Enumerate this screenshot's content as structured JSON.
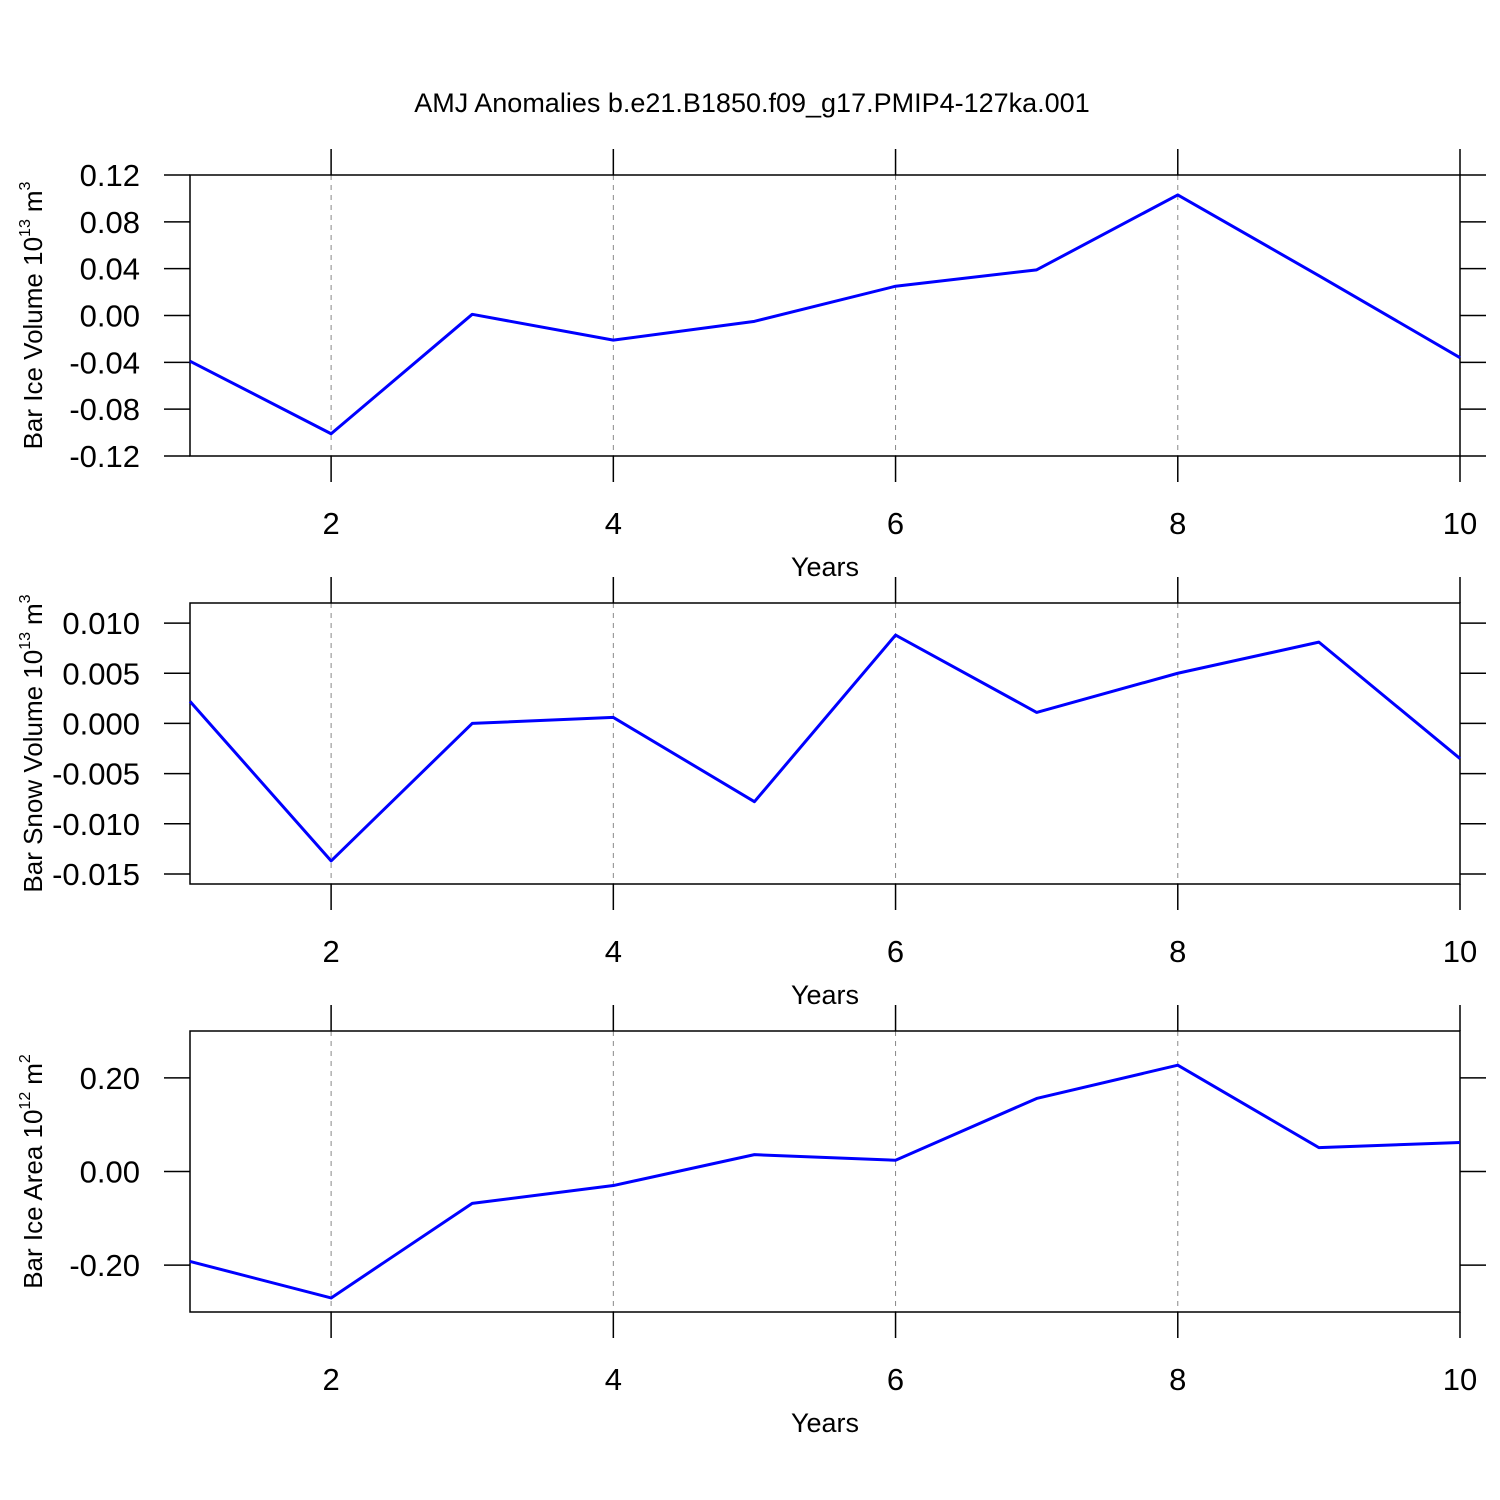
{
  "title": "AMJ Anomalies b.e21.B1850.f09_g17.PMIP4-127ka.001",
  "chart_data": [
    {
      "type": "line",
      "ylabel": [
        "Bar Ice Volume 10",
        "13",
        "m",
        "3"
      ],
      "xlabel": "Years",
      "x": [
        1,
        2,
        3,
        4,
        5,
        6,
        7,
        8,
        9,
        10
      ],
      "values": [
        -0.039,
        -0.101,
        0.001,
        -0.021,
        -0.005,
        0.025,
        0.039,
        0.103,
        0.034,
        -0.036
      ],
      "color": "#0000ff",
      "xlim": [
        1,
        10
      ],
      "xticks": [
        2,
        4,
        6,
        8,
        10
      ],
      "ylim": [
        -0.12,
        0.12
      ],
      "yticks": [
        {
          "value": -0.12,
          "label": "-0.12"
        },
        {
          "value": -0.08,
          "label": "-0.08"
        },
        {
          "value": -0.04,
          "label": "-0.04"
        },
        {
          "value": 0,
          "label": "0.00"
        },
        0.04,
        0.08,
        0.12
      ],
      "grid": "x"
    },
    {
      "type": "line",
      "ylabel": [
        "Bar Snow Volume 10",
        "13",
        "m",
        "3"
      ],
      "xlabel": "Years",
      "x": [
        1,
        2,
        3,
        4,
        5,
        6,
        7,
        8,
        9,
        10
      ],
      "values": [
        0.0022,
        -0.0137,
        0.0,
        0.0006,
        -0.0078,
        0.0088,
        0.0011,
        0.005,
        0.0081,
        -0.0035
      ],
      "color": "#0000ff",
      "xlim": [
        1,
        10
      ],
      "xticks": [
        2,
        4,
        6,
        8,
        10
      ],
      "ylim": [
        -0.016,
        0.012
      ],
      "yticks": [
        -0.015,
        {
          "value": -0.01,
          "label": "-0.010"
        },
        -0.005,
        {
          "value": 0,
          "label": "0.000"
        },
        0.005,
        {
          "value": 0.01,
          "label": "0.010"
        }
      ],
      "grid": "x"
    },
    {
      "type": "line",
      "ylabel": [
        "Bar Ice Area 10",
        "12",
        "m",
        "2"
      ],
      "xlabel": "Years",
      "x": [
        1,
        2,
        3,
        4,
        5,
        6,
        7,
        8,
        9,
        10
      ],
      "values": [
        -0.192,
        -0.27,
        -0.068,
        -0.03,
        0.036,
        0.024,
        0.156,
        0.227,
        0.051,
        0.062
      ],
      "color": "#0000ff",
      "xlim": [
        1,
        10
      ],
      "xticks": [
        2,
        4,
        6,
        8,
        10
      ],
      "ylim": [
        -0.3,
        0.3
      ],
      "yticks": [
        {
          "value": -0.2,
          "label": "-0.20"
        },
        {
          "value": 0,
          "label": "0.00"
        },
        {
          "value": 0.2,
          "label": "0.20"
        }
      ],
      "grid": "x"
    }
  ]
}
